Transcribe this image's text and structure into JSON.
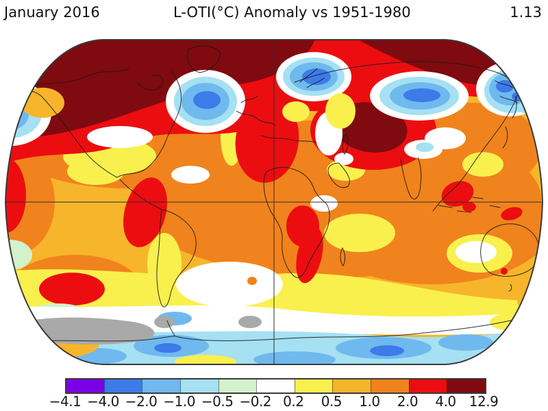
{
  "header": {
    "period": "January 2016",
    "title": "L-OTI(°C) Anomaly vs 1951-1980",
    "global_mean": "1.13"
  },
  "chart_data": {
    "type": "heatmap",
    "title": "L-OTI(°C) Anomaly vs 1951-1980",
    "period": "January 2016",
    "units": "°C",
    "baseline_period": "1951-1980",
    "global_mean_anomaly_c": 1.13,
    "projection": "Robinson world map with equator and central-meridian gridlines",
    "colorbar": {
      "tick_labels": [
        "−4.1",
        "−4.0",
        "−2.0",
        "−1.0",
        "−0.5",
        "−0.2",
        "0.2",
        "0.5",
        "1.0",
        "2.0",
        "4.0",
        "12.9"
      ],
      "bin_edges_c": [
        -4.1,
        -4.0,
        -2.0,
        -1.0,
        -0.5,
        -0.2,
        0.2,
        0.5,
        1.0,
        2.0,
        4.0,
        12.9
      ],
      "segment_colors": [
        "#7C00E6",
        "#3D7BE8",
        "#6FB9EE",
        "#A5E0F3",
        "#D2F2CC",
        "#FFFFFF",
        "#F9F04E",
        "#F7B52B",
        "#F0831D",
        "#EC0D10",
        "#7F0A10"
      ],
      "no_data_color": "#A9A9A9",
      "outline_color": "#3a3a3a"
    },
    "notable_regions": [
      {
        "region": "Arctic, northern Canada, Alaska and eastern Siberia",
        "anomaly_c": "+4.0 to +12.9"
      },
      {
        "region": "Central Asia (Kazakhstan / Mongolia)",
        "anomaly_c": "+4.0 to +12.9"
      },
      {
        "region": "Western Europe and northwest Africa",
        "anomaly_c": "+2.0 to +4.0"
      },
      {
        "region": "Northern South America",
        "anomaly_c": "+2.0 to +4.0"
      },
      {
        "region": "Central and southern Africa",
        "anomaly_c": "+2.0 to +4.0"
      },
      {
        "region": "Southeast Asia / New Guinea",
        "anomaly_c": "+2.0 to +4.0"
      },
      {
        "region": "South Pacific warm blob",
        "anomaly_c": "+2.0 to +4.0"
      },
      {
        "region": "Tropics, Indian Ocean and Australia",
        "anomaly_c": "+0.5 to +2.0"
      },
      {
        "region": "North Atlantic south of Greenland",
        "anomaly_c": "−0.5 to −2.0"
      },
      {
        "region": "Scandinavia / Barents Sea",
        "anomaly_c": "−0.5 to −2.0"
      },
      {
        "region": "Western Siberia",
        "anomaly_c": "−0.5 to −2.0"
      },
      {
        "region": "Gulf of Alaska / Bering Sea",
        "anomaly_c": "−0.5 to −2.0"
      },
      {
        "region": "Southern Ocean belt",
        "anomaly_c": "−0.2 to −1.0"
      },
      {
        "region": "Antarctic coastal patches",
        "anomaly_c": "no data"
      }
    ],
    "legend_position": "bottom",
    "grid": true
  }
}
